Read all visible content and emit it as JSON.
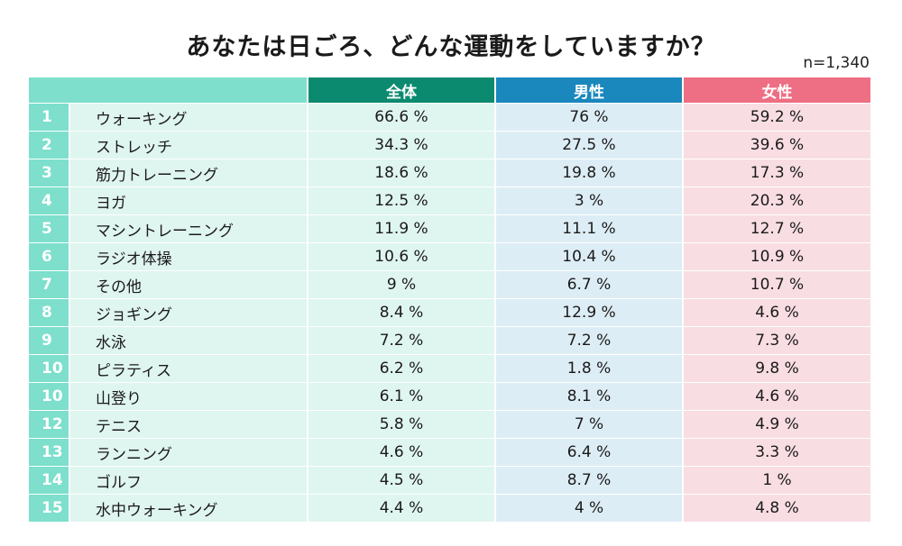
{
  "title": "あなたは日ごろ、どんな運動をしていますか？",
  "sample_size": "n=1,340",
  "colors": {
    "all": "#0b8a6f",
    "male": "#1a87bd",
    "female": "#ee6e83"
  },
  "chart_data": {
    "type": "table",
    "columns": [
      "全体",
      "男性",
      "女性"
    ],
    "unit": "%",
    "rows": [
      {
        "rank": "1",
        "item": "ウォーキング",
        "values": [
          "66.6 %",
          "76 %",
          "59.2 %"
        ]
      },
      {
        "rank": "2",
        "item": "ストレッチ",
        "values": [
          "34.3 %",
          "27.5 %",
          "39.6 %"
        ]
      },
      {
        "rank": "3",
        "item": "筋力トレーニング",
        "values": [
          "18.6 %",
          "19.8 %",
          "17.3 %"
        ]
      },
      {
        "rank": "4",
        "item": "ヨガ",
        "values": [
          "12.5 %",
          "3 %",
          "20.3 %"
        ]
      },
      {
        "rank": "5",
        "item": "マシントレーニング",
        "values": [
          "11.9 %",
          "11.1 %",
          "12.7 %"
        ]
      },
      {
        "rank": "6",
        "item": "ラジオ体操",
        "values": [
          "10.6 %",
          "10.4 %",
          "10.9 %"
        ]
      },
      {
        "rank": "7",
        "item": "その他",
        "values": [
          "9 %",
          "6.7 %",
          "10.7 %"
        ]
      },
      {
        "rank": "8",
        "item": "ジョギング",
        "values": [
          "8.4 %",
          "12.9 %",
          "4.6 %"
        ]
      },
      {
        "rank": "9",
        "item": "水泳",
        "values": [
          "7.2 %",
          "7.2 %",
          "7.3 %"
        ]
      },
      {
        "rank": "10",
        "item": "ピラティス",
        "values": [
          "6.2 %",
          "1.8 %",
          "9.8 %"
        ]
      },
      {
        "rank": "10",
        "item": "山登り",
        "values": [
          "6.1 %",
          "8.1 %",
          "4.6 %"
        ]
      },
      {
        "rank": "12",
        "item": "テニス",
        "values": [
          "5.8 %",
          "7 %",
          "4.9 %"
        ]
      },
      {
        "rank": "13",
        "item": "ランニング",
        "values": [
          "4.6 %",
          "6.4 %",
          "3.3 %"
        ]
      },
      {
        "rank": "14",
        "item": "ゴルフ",
        "values": [
          "4.5 %",
          "8.7 %",
          "1 %"
        ]
      },
      {
        "rank": "15",
        "item": "水中ウォーキング",
        "values": [
          "4.4 %",
          "4 %",
          "4.8 %"
        ]
      }
    ]
  }
}
